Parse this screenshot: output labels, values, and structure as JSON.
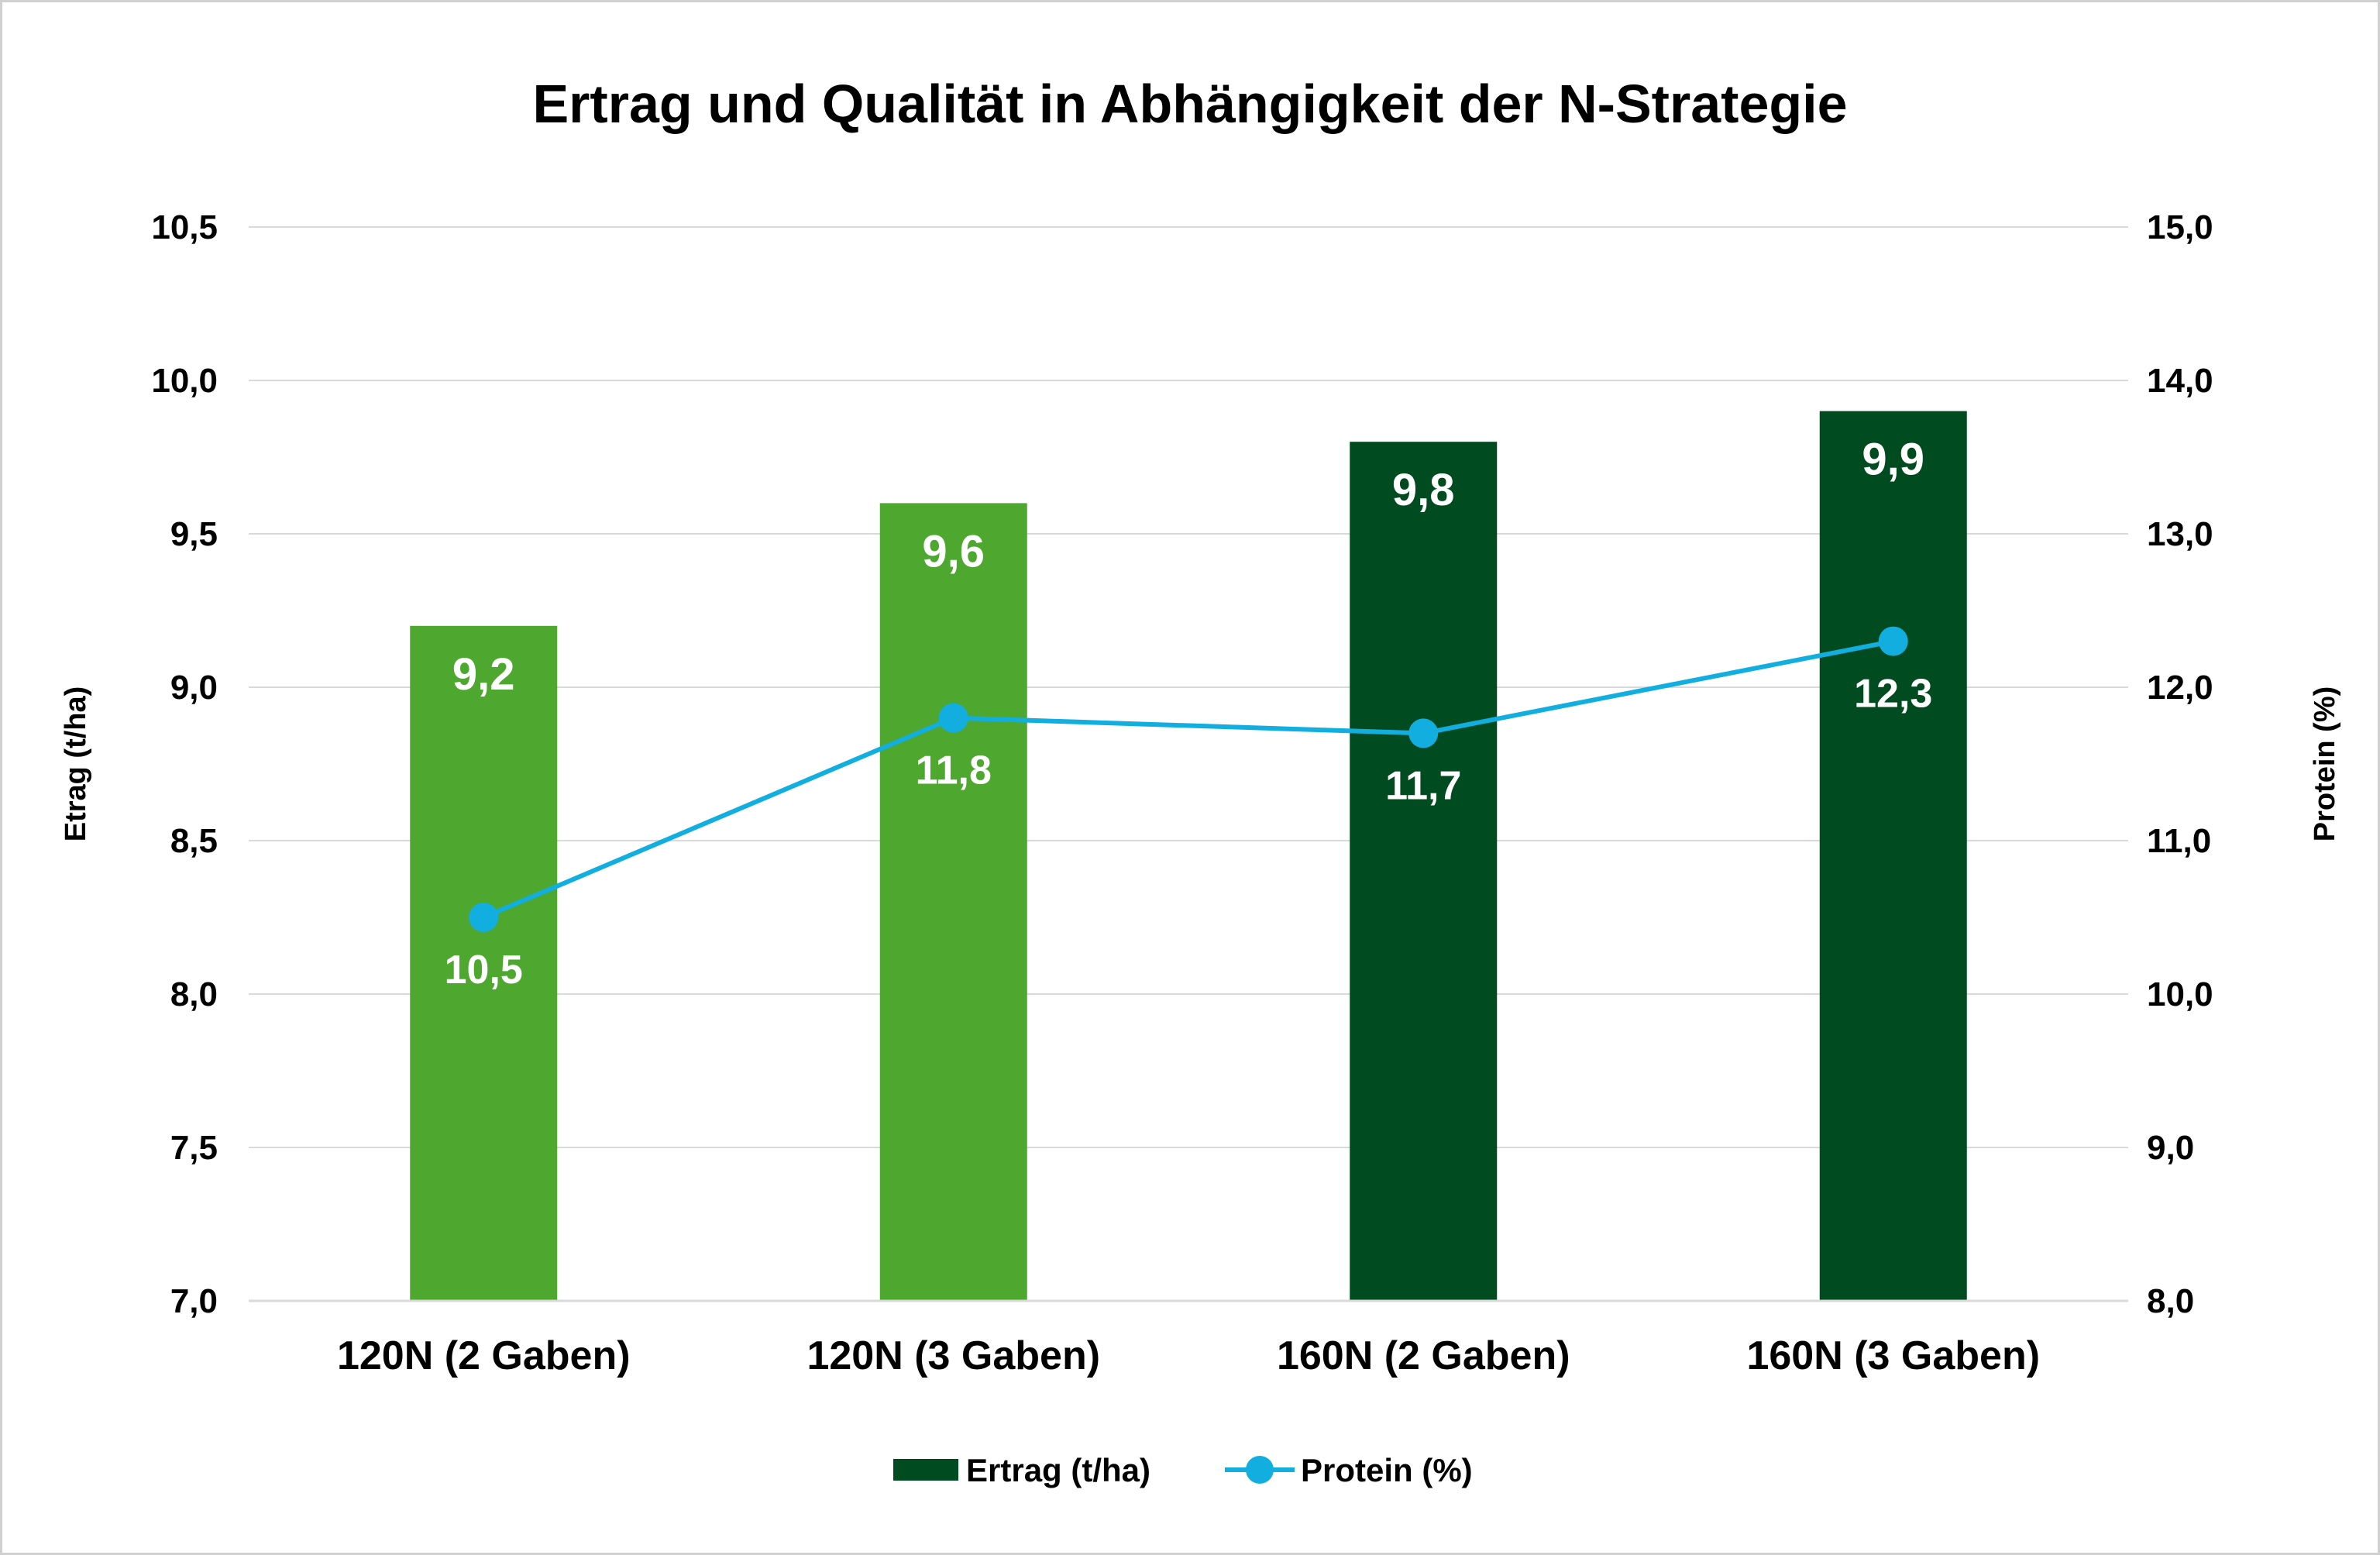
{
  "chart_data": {
    "type": "bar",
    "title": "Ertrag und Qualität in Abhängigkeit der N-Strategie",
    "categories": [
      "120N (2 Gaben)",
      "120N (3 Gaben)",
      "160N (2 Gaben)",
      "160N (3 Gaben)"
    ],
    "series": [
      {
        "name": "Ertrag (t/ha)",
        "kind": "bar",
        "axis": "left",
        "values": [
          9.2,
          9.6,
          9.8,
          9.9
        ],
        "labels": [
          "9,2",
          "9,6",
          "9,8",
          "9,9"
        ],
        "colors": [
          "#4ea72e",
          "#4ea72e",
          "#004b1f",
          "#004b1f"
        ],
        "legend_color": "#004b1f"
      },
      {
        "name": "Protein (%)",
        "kind": "line",
        "axis": "right",
        "values": [
          10.5,
          11.8,
          11.7,
          12.3
        ],
        "labels": [
          "10,5",
          "11,8",
          "11,7",
          "12,3"
        ],
        "color": "#12aee0"
      }
    ],
    "y_left": {
      "label": "Etrag (t/ha)",
      "lim": [
        7.0,
        10.5
      ],
      "ticks": [
        7.0,
        7.5,
        8.0,
        8.5,
        9.0,
        9.5,
        10.0,
        10.5
      ],
      "tick_labels": [
        "7,0",
        "7,5",
        "8,0",
        "8,5",
        "9,0",
        "9,5",
        "10,0",
        "10,5"
      ]
    },
    "y_right": {
      "label": "Protein (%)",
      "lim": [
        8.0,
        15.0
      ],
      "ticks": [
        8.0,
        9.0,
        10.0,
        11.0,
        12.0,
        13.0,
        14.0,
        15.0
      ],
      "tick_labels": [
        "8,0",
        "9,0",
        "10,0",
        "11,0",
        "12,0",
        "13,0",
        "14,0",
        "15,0"
      ]
    },
    "grid": true,
    "legend_position": "bottom",
    "gridline_color": "#d9d9d9"
  }
}
